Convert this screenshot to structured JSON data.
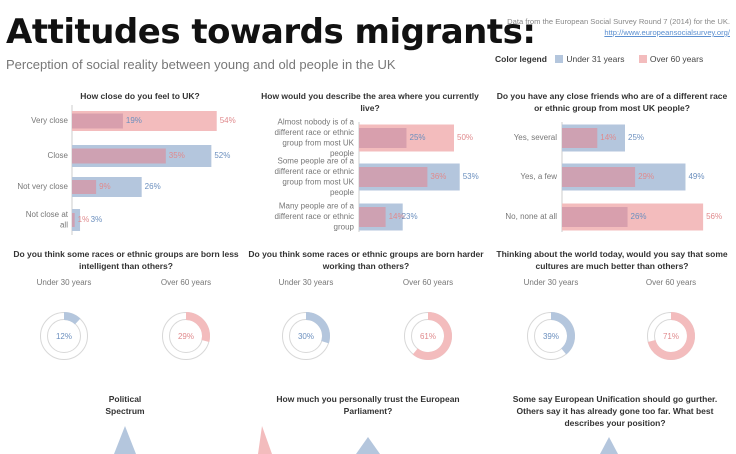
{
  "header": {
    "title": "Attitudes towards migrants:",
    "subtitle": "Perception of social reality between young and old people in the UK",
    "source_line": "Data from the European Social Survey Round 7 (2014) for the UK.",
    "source_link": "http://www.europeansocialsurvey.org/"
  },
  "legend": {
    "title": "Color legend",
    "items": [
      {
        "label": "Under 31 years",
        "color": "#b4c6dd"
      },
      {
        "label": "Over 60 years",
        "color": "#f3bcbd"
      }
    ]
  },
  "colors": {
    "young": "#b4c6dd",
    "old": "#f3bcbd",
    "overlap": "#d29aaa",
    "young_text": "#6b8fbe",
    "old_text": "#e08a8d"
  },
  "chart_data": [
    {
      "type": "bar",
      "orientation": "horizontal",
      "title": "How close do you feel to UK?",
      "categories": [
        "Very close",
        "Close",
        "Not very close",
        "Not close at all"
      ],
      "series": [
        {
          "name": "Under 31 years",
          "values": [
            19,
            52,
            26,
            3
          ]
        },
        {
          "name": "Over 60 years",
          "values": [
            54,
            35,
            9,
            1
          ]
        }
      ],
      "labels": [
        [
          "19%",
          "54%"
        ],
        [
          "35%",
          "52%"
        ],
        [
          "9%",
          "26%"
        ],
        [
          "1%",
          "3%"
        ]
      ]
    },
    {
      "type": "bar",
      "orientation": "horizontal",
      "title": "How would you describe the  area where you currently live?",
      "categories": [
        "Almost nobody is of a different race or ethnic group from most UK people",
        "Some people are of a different race or ethnic group from most UK people",
        "Many people are of a different race or ethnic group"
      ],
      "series": [
        {
          "name": "Under 31 years",
          "values": [
            25,
            53,
            23
          ]
        },
        {
          "name": "Over 60 years",
          "values": [
            50,
            36,
            14
          ]
        }
      ],
      "labels": [
        [
          "25%",
          "50%"
        ],
        [
          "36%",
          "53%"
        ],
        [
          "14%",
          "23%"
        ]
      ]
    },
    {
      "type": "bar",
      "orientation": "horizontal",
      "title": "Do you have any close friends who are of a different race or ethnic group from most UK people?",
      "categories": [
        "Yes, several",
        "Yes, a few",
        "No, none at all"
      ],
      "series": [
        {
          "name": "Under 31 years",
          "values": [
            25,
            49,
            26
          ]
        },
        {
          "name": "Over 60 years",
          "values": [
            14,
            29,
            56
          ]
        }
      ],
      "labels": [
        [
          "14%",
          "25%"
        ],
        [
          "29%",
          "49%"
        ],
        [
          "26%",
          "56%"
        ]
      ]
    },
    {
      "type": "pie",
      "style": "donut",
      "title": "Do you think some races or ethnic groups are born less intelligent than others?",
      "groups": [
        {
          "name": "Under 30 years",
          "value": 12
        },
        {
          "name": "Over 60 years",
          "value": 29
        }
      ]
    },
    {
      "type": "pie",
      "style": "donut",
      "title": "Do you think some races or ethnic groups are born harder working than others?",
      "groups": [
        {
          "name": "Under 30 years",
          "value": 30
        },
        {
          "name": "Over 60 years",
          "value": 61
        }
      ]
    },
    {
      "type": "pie",
      "style": "donut",
      "title": "Thinking about the world today, would you say that some cultures  are much better than others?",
      "groups": [
        {
          "name": "Under 30 years",
          "value": 39
        },
        {
          "name": "Over 60 years",
          "value": 71
        }
      ]
    },
    {
      "type": "area",
      "title": "Political Spectrum"
    },
    {
      "type": "area",
      "title": "How much you personally trust the European Parliament?"
    },
    {
      "type": "area",
      "title": "Some say European Unification should go gurther. Others say it has already gone too far. What best describes your position?"
    }
  ]
}
